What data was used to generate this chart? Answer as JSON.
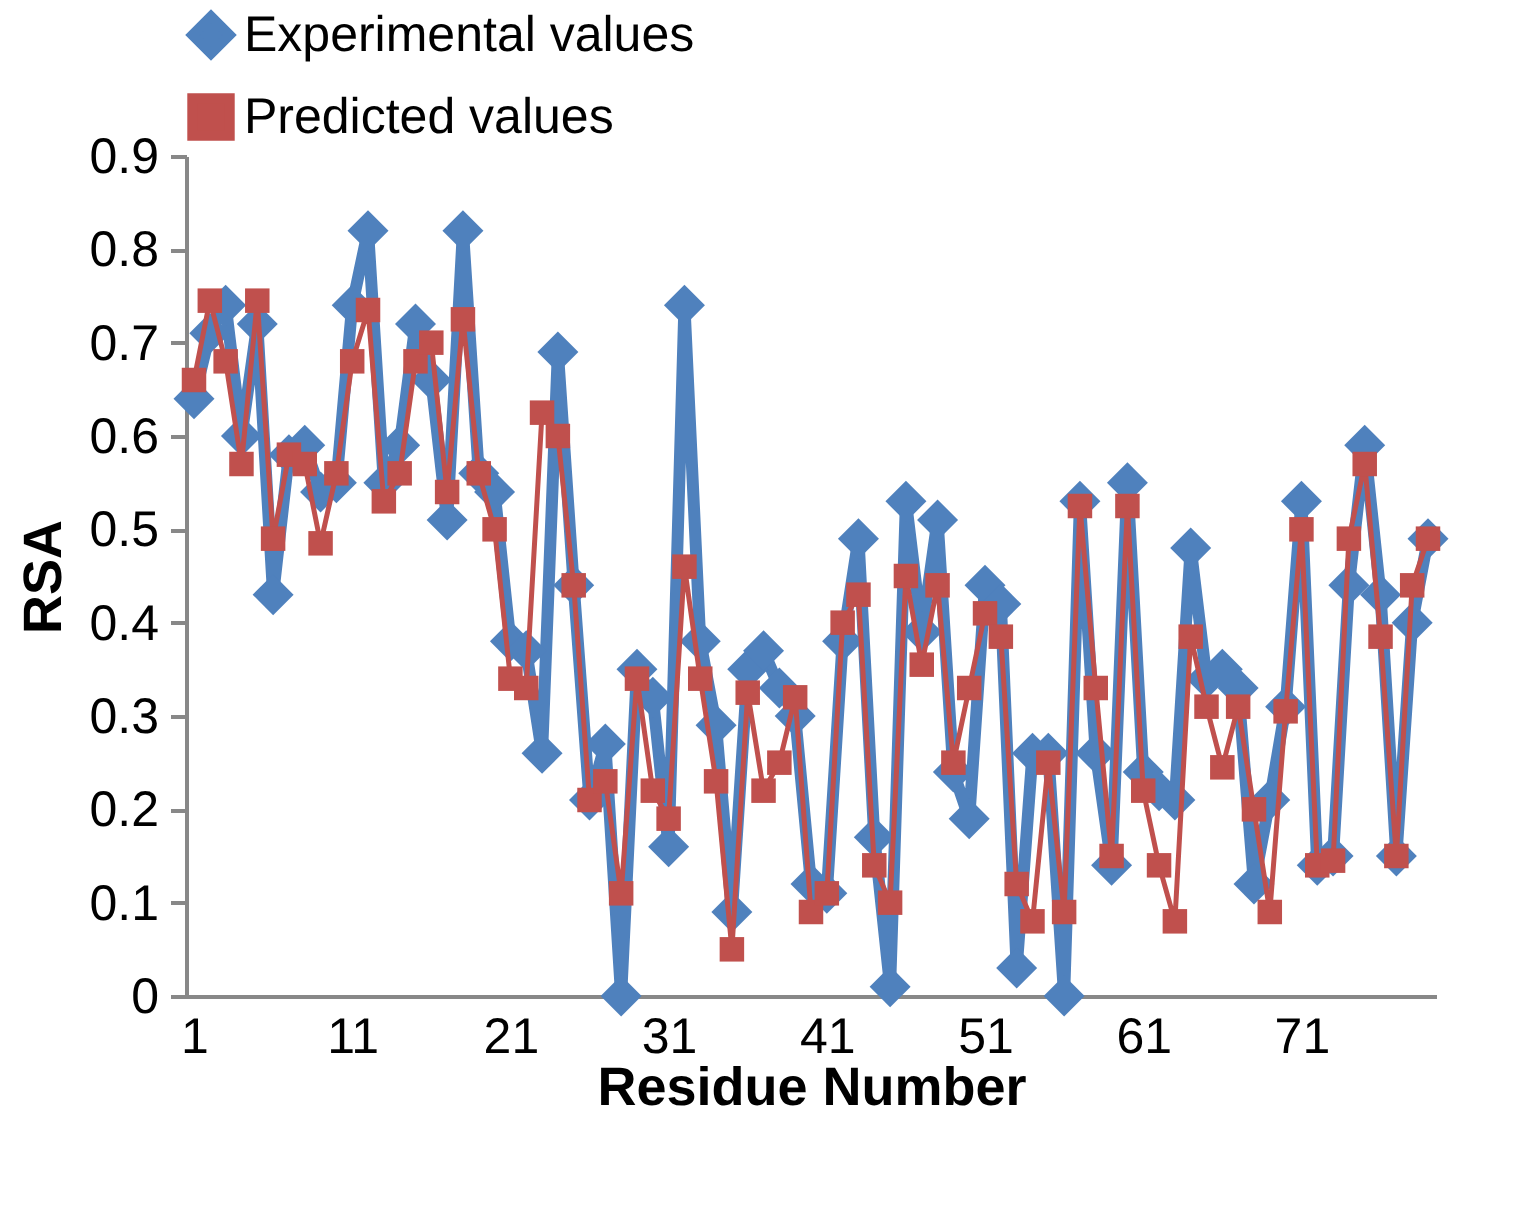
{
  "chart_data": {
    "type": "line",
    "xlabel": "Residue Number",
    "ylabel": "RSA",
    "categories": [
      "1",
      null,
      null,
      null,
      null,
      null,
      null,
      null,
      null,
      null,
      "11",
      null,
      null,
      null,
      null,
      null,
      null,
      null,
      null,
      null,
      "21",
      null,
      null,
      null,
      null,
      null,
      null,
      null,
      null,
      null,
      "31",
      null,
      null,
      null,
      null,
      null,
      null,
      null,
      null,
      null,
      "41",
      null,
      null,
      null,
      null,
      null,
      null,
      null,
      null,
      null,
      "51",
      null,
      null,
      null,
      null,
      null,
      null,
      null,
      null,
      null,
      "61",
      null,
      null,
      null,
      null,
      null,
      null,
      null,
      null,
      null,
      "71",
      null,
      null,
      null,
      null,
      null,
      null,
      null,
      null
    ],
    "series": [
      {
        "name": "Experimental values",
        "color": "#4f81bd",
        "marker": "diamond",
        "values": [
          0.64,
          0.71,
          0.74,
          0.6,
          0.72,
          0.43,
          0.58,
          0.59,
          0.54,
          0.55,
          0.74,
          0.82,
          0.55,
          0.59,
          0.72,
          0.66,
          0.51,
          0.82,
          0.56,
          0.54,
          0.38,
          0.37,
          0.26,
          0.69,
          0.44,
          0.21,
          0.27,
          0.0,
          0.35,
          0.32,
          0.16,
          0.74,
          0.38,
          0.29,
          0.09,
          0.35,
          0.37,
          0.33,
          0.3,
          0.12,
          0.11,
          0.38,
          0.49,
          0.17,
          0.01,
          0.53,
          0.39,
          0.51,
          0.24,
          0.19,
          0.44,
          0.42,
          0.03,
          0.26,
          0.26,
          0.0,
          0.53,
          0.26,
          0.14,
          0.55,
          0.24,
          0.22,
          0.21,
          0.48,
          0.34,
          0.35,
          0.33,
          0.12,
          0.21,
          0.31,
          0.53,
          0.14,
          0.15,
          0.44,
          0.59,
          0.43,
          0.15,
          0.4,
          0.49
        ]
      },
      {
        "name": "Predicted values",
        "color": "#c0504d",
        "marker": "square",
        "values": [
          0.66,
          0.745,
          0.68,
          0.57,
          0.745,
          0.49,
          0.58,
          0.57,
          0.485,
          0.56,
          0.68,
          0.735,
          0.53,
          0.56,
          0.68,
          0.7,
          0.54,
          0.725,
          0.56,
          0.5,
          0.34,
          0.33,
          0.625,
          0.6,
          0.44,
          0.21,
          0.23,
          0.11,
          0.34,
          0.22,
          0.19,
          0.46,
          0.34,
          0.23,
          0.05,
          0.325,
          0.22,
          0.25,
          0.32,
          0.09,
          0.11,
          0.4,
          0.43,
          0.14,
          0.1,
          0.45,
          0.355,
          0.44,
          0.25,
          0.33,
          0.41,
          0.385,
          0.12,
          0.08,
          0.25,
          0.09,
          0.525,
          0.33,
          0.15,
          0.525,
          0.22,
          0.14,
          0.08,
          0.385,
          0.31,
          0.245,
          0.31,
          0.2,
          0.09,
          0.305,
          0.5,
          0.14,
          0.145,
          0.49,
          0.57,
          0.385,
          0.15,
          0.44,
          0.49
        ]
      }
    ],
    "ylim": [
      0,
      0.9
    ],
    "yticks": [
      0,
      0.1,
      0.2,
      0.3,
      0.4,
      0.5,
      0.6,
      0.7,
      0.8,
      0.9
    ],
    "grid": false,
    "legend": "top"
  }
}
